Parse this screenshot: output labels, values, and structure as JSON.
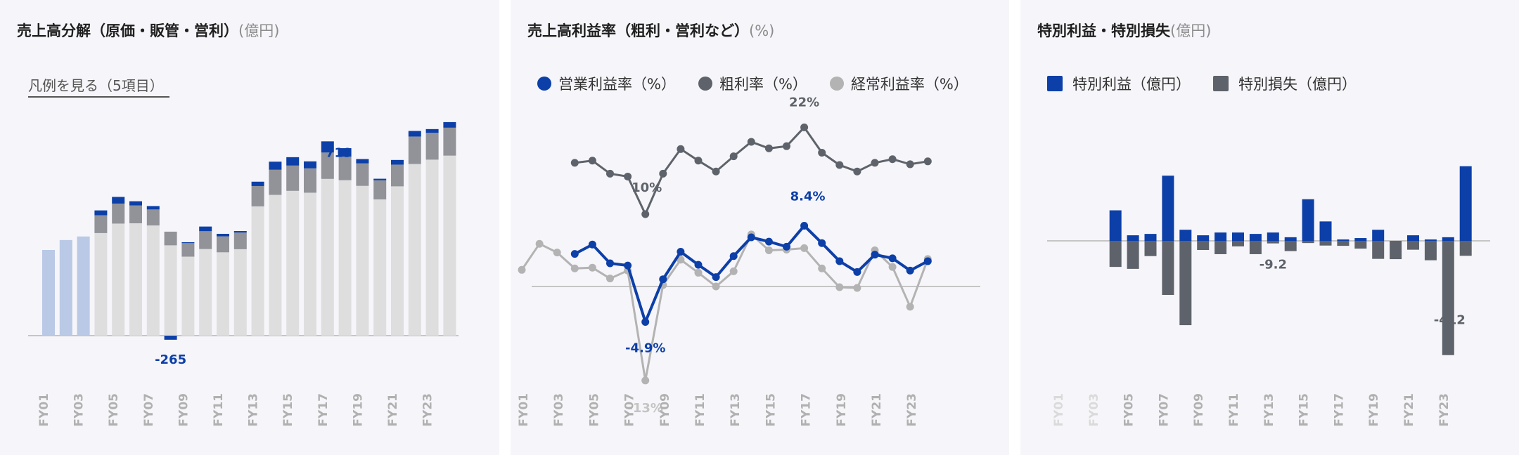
{
  "panels": {
    "p1": {
      "title": "売上高分解（原価・販管・営利）",
      "unit": "(億円)",
      "legend_link": "凡例を見る（5項目）"
    },
    "p2": {
      "title": "売上高利益率（粗利・営利など）",
      "unit": "(%)",
      "legend": [
        {
          "label": "営業利益率（%）",
          "color": "#0c3fa8"
        },
        {
          "label": "粗利率（%）",
          "color": "#5e636b"
        },
        {
          "label": "経常利益率（%）",
          "color": "#b3b3b3"
        }
      ]
    },
    "p3": {
      "title": "特別利益・特別損失",
      "unit": "(億円)",
      "legend": [
        {
          "label": "特別利益（億円）",
          "color": "#0c3fa8"
        },
        {
          "label": "特別損失（億円）",
          "color": "#5e636b"
        }
      ]
    }
  },
  "chart_data": [
    {
      "type": "bar",
      "title": "売上高分解（原価・販管・営利）",
      "categories": [
        "FY01",
        "FY02",
        "FY03",
        "FY04",
        "FY05",
        "FY06",
        "FY07",
        "FY08",
        "FY09",
        "FY10",
        "FY11",
        "FY12",
        "FY13",
        "FY14",
        "FY15",
        "FY16",
        "FY17",
        "FY18",
        "FY19",
        "FY20",
        "FY21",
        "FY22",
        "FY23",
        "FY24"
      ],
      "tick_labels": [
        "FY01",
        "FY03",
        "FY05",
        "FY07",
        "FY09",
        "FY11",
        "FY13",
        "FY15",
        "FY17",
        "FY19",
        "FY21",
        "FY23"
      ],
      "stacked": true,
      "series": [
        {
          "values": [
            5520,
            6160,
            6390,
            6610,
            7220,
            7240,
            7100,
            5820,
            5090,
            5580,
            5370,
            5570,
            8330,
            9070,
            9330,
            9210,
            10100,
            10020,
            9650,
            8780,
            9620,
            11060,
            11340,
            11600
          ]
        },
        {
          "values": [
            0,
            0,
            0,
            1150,
            1290,
            1150,
            1030,
            880,
            870,
            1150,
            1030,
            1070,
            1310,
            1620,
            1630,
            1570,
            1700,
            1520,
            1450,
            1230,
            1400,
            1770,
            1730,
            1800
          ]
        },
        {
          "values": [
            0,
            0,
            0,
            310,
            430,
            270,
            220,
            -265,
            60,
            300,
            160,
            100,
            280,
            520,
            540,
            450,
            719,
            540,
            280,
            100,
            300,
            360,
            240,
            360
          ]
        }
      ],
      "data_labels": [
        {
          "category": "FY08",
          "text": "-265"
        },
        {
          "category": "FY17",
          "text": "719"
        }
      ],
      "colors": [
        "#dededf",
        "#919398",
        "#0c3fa8"
      ],
      "faded_color": "#b9c9e6",
      "faded_categories": [
        "FY01",
        "FY02",
        "FY03"
      ]
    },
    {
      "type": "line",
      "title": "売上高利益率（粗利・営利など）",
      "categories": [
        "FY01",
        "FY02",
        "FY03",
        "FY04",
        "FY05",
        "FY06",
        "FY07",
        "FY08",
        "FY09",
        "FY10",
        "FY11",
        "FY12",
        "FY13",
        "FY14",
        "FY15",
        "FY16",
        "FY17",
        "FY18",
        "FY19",
        "FY20",
        "FY21",
        "FY22",
        "FY23",
        "FY24"
      ],
      "tick_labels": [
        "FY01",
        "FY03",
        "FY05",
        "FY07",
        "FY09",
        "FY11",
        "FY13",
        "FY15",
        "FY17",
        "FY19",
        "FY21",
        "FY23"
      ],
      "series": [
        {
          "name": "営業利益率（%）",
          "color": "#0c3fa8",
          "values": [
            null,
            null,
            null,
            4.5,
            5.8,
            3.2,
            2.9,
            -4.9,
            1.0,
            4.8,
            3.0,
            1.3,
            4.2,
            6.8,
            6.2,
            5.5,
            8.4,
            6.0,
            3.5,
            2.0,
            4.4,
            3.9,
            2.2,
            3.5
          ]
        },
        {
          "name": "粗利率（%）",
          "color": "#5e636b",
          "values": [
            null,
            null,
            null,
            17.1,
            17.4,
            15.6,
            15.2,
            10.0,
            15.6,
            19.0,
            17.4,
            15.9,
            18.0,
            20.0,
            19.1,
            19.4,
            22.0,
            18.5,
            16.8,
            15.9,
            17.1,
            17.6,
            16.9,
            17.3
          ]
        },
        {
          "name": "経常利益率（%）",
          "color": "#b3b3b3",
          "values": [
            2.3,
            5.9,
            4.7,
            2.5,
            2.6,
            1.1,
            2.2,
            -13.0,
            0.2,
            3.7,
            1.9,
            0.0,
            2.1,
            7.2,
            5.0,
            5.1,
            5.3,
            2.5,
            -0.1,
            -0.2,
            5.0,
            2.7,
            -2.8,
            3.8
          ]
        }
      ],
      "data_labels": [
        {
          "series": 1,
          "category": "FY08",
          "text": "10%"
        },
        {
          "series": 1,
          "category": "FY17",
          "text": "22%"
        },
        {
          "series": 0,
          "category": "FY08",
          "text": "-4.9%"
        },
        {
          "series": 0,
          "category": "FY17",
          "text": "8.4%"
        },
        {
          "series": 2,
          "category": "FY08",
          "text": "-13%"
        }
      ]
    },
    {
      "type": "bar",
      "title": "特別利益・特別損失",
      "categories": [
        "FY01",
        "FY02",
        "FY03",
        "FY04",
        "FY05",
        "FY06",
        "FY07",
        "FY08",
        "FY09",
        "FY10",
        "FY11",
        "FY12",
        "FY13",
        "FY14",
        "FY15",
        "FY16",
        "FY17",
        "FY18",
        "FY19",
        "FY20",
        "FY21",
        "FY22",
        "FY23",
        "FY24"
      ],
      "tick_labels": [
        "FY01",
        "FY03",
        "FY05",
        "FY07",
        "FY09",
        "FY11",
        "FY13",
        "FY15",
        "FY17",
        "FY19",
        "FY21",
        "FY23"
      ],
      "faded_ticks": [
        "FY01",
        "FY03"
      ],
      "series": [
        {
          "name": "特別利益（億円）",
          "color": "#0c3fa8",
          "values": [
            null,
            null,
            null,
            110,
            20,
            25,
            235,
            40,
            20,
            30,
            30,
            25,
            30,
            13,
            150,
            70,
            5,
            10,
            40,
            0,
            20,
            5,
            13,
            269
          ]
        },
        {
          "name": "特別損失（億円）",
          "color": "#5e636b",
          "values": [
            null,
            null,
            null,
            -94,
            -101,
            -55,
            -195,
            -304,
            -33,
            -48,
            -20,
            -48,
            -9.2,
            -37,
            -8,
            -17,
            -18,
            -28,
            -65,
            -66,
            -32,
            -70,
            -412,
            -54
          ]
        }
      ],
      "data_labels": [
        {
          "series": 1,
          "category": "FY13",
          "text": "-9.2"
        },
        {
          "series": 1,
          "category": "FY23",
          "text": "-412"
        }
      ]
    }
  ]
}
